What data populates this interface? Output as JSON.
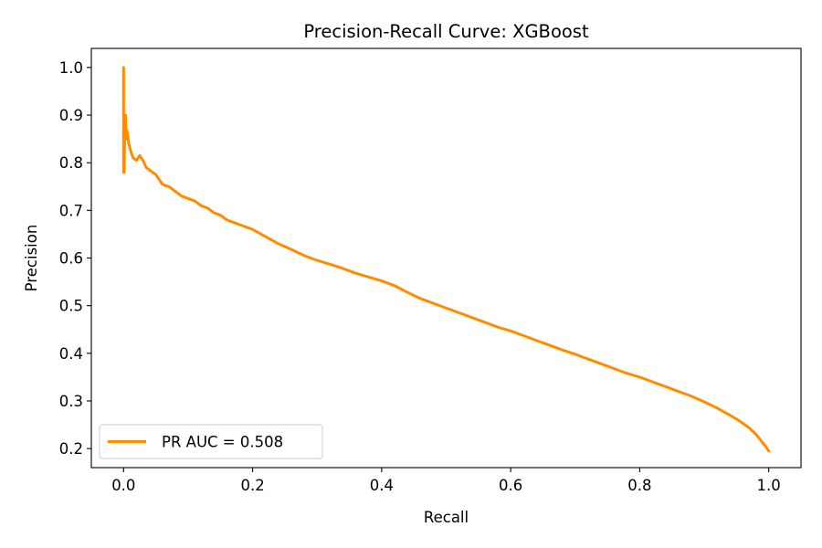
{
  "chart_data": {
    "type": "line",
    "title": "Precision-Recall Curve: XGBoost",
    "xlabel": "Recall",
    "ylabel": "Precision",
    "xlim": [
      -0.05,
      1.05
    ],
    "ylim": [
      0.16,
      1.04
    ],
    "xticks": [
      0.0,
      0.2,
      0.4,
      0.6,
      0.8,
      1.0
    ],
    "xtick_labels": [
      "0.0",
      "0.2",
      "0.4",
      "0.6",
      "0.8",
      "1.0"
    ],
    "yticks": [
      0.2,
      0.3,
      0.4,
      0.5,
      0.6,
      0.7,
      0.8,
      0.9,
      1.0
    ],
    "ytick_labels": [
      "0.2",
      "0.3",
      "0.4",
      "0.5",
      "0.6",
      "0.7",
      "0.8",
      "0.9",
      "1.0"
    ],
    "grid": false,
    "legend_position": "lower-left",
    "series": [
      {
        "name": "PR AUC = 0.508",
        "color": "#ff8c00",
        "x": [
          0.0,
          0.0,
          0.0,
          0.001,
          0.002,
          0.003,
          0.004,
          0.005,
          0.006,
          0.008,
          0.01,
          0.012,
          0.015,
          0.02,
          0.025,
          0.03,
          0.035,
          0.04,
          0.045,
          0.05,
          0.055,
          0.06,
          0.065,
          0.07,
          0.08,
          0.09,
          0.1,
          0.11,
          0.12,
          0.13,
          0.14,
          0.15,
          0.16,
          0.18,
          0.2,
          0.22,
          0.24,
          0.26,
          0.28,
          0.3,
          0.32,
          0.34,
          0.36,
          0.38,
          0.4,
          0.42,
          0.44,
          0.46,
          0.48,
          0.5,
          0.52,
          0.54,
          0.56,
          0.58,
          0.6,
          0.62,
          0.64,
          0.66,
          0.68,
          0.7,
          0.72,
          0.74,
          0.76,
          0.78,
          0.8,
          0.82,
          0.84,
          0.86,
          0.88,
          0.9,
          0.92,
          0.94,
          0.95,
          0.96,
          0.97,
          0.98,
          0.985,
          0.99,
          0.995,
          1.0
        ],
        "y": [
          0.78,
          1.0,
          0.8,
          0.78,
          0.88,
          0.9,
          0.85,
          0.87,
          0.86,
          0.84,
          0.83,
          0.82,
          0.81,
          0.805,
          0.815,
          0.805,
          0.79,
          0.785,
          0.78,
          0.775,
          0.765,
          0.755,
          0.752,
          0.75,
          0.74,
          0.73,
          0.725,
          0.72,
          0.71,
          0.705,
          0.695,
          0.69,
          0.68,
          0.67,
          0.66,
          0.645,
          0.63,
          0.618,
          0.605,
          0.595,
          0.587,
          0.578,
          0.568,
          0.56,
          0.552,
          0.542,
          0.528,
          0.515,
          0.505,
          0.495,
          0.485,
          0.475,
          0.465,
          0.455,
          0.447,
          0.437,
          0.427,
          0.417,
          0.407,
          0.398,
          0.388,
          0.378,
          0.368,
          0.358,
          0.35,
          0.34,
          0.33,
          0.32,
          0.31,
          0.298,
          0.285,
          0.27,
          0.262,
          0.253,
          0.243,
          0.23,
          0.222,
          0.213,
          0.205,
          0.195
        ]
      }
    ]
  }
}
